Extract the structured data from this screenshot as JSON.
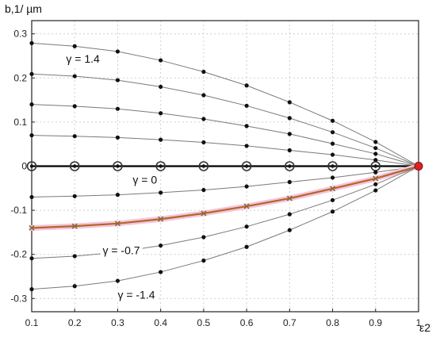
{
  "chart_data": {
    "type": "line",
    "title": "",
    "ylabel": "b,1/ µm",
    "xlabel": "ε2",
    "xlim": [
      0.1,
      1.0
    ],
    "ylim": [
      -0.33,
      0.33
    ],
    "grid": true,
    "x": [
      0.1,
      0.2,
      0.3,
      0.4,
      0.5,
      0.6,
      0.7,
      0.8,
      0.9,
      1.0
    ],
    "x_ticks": [
      "0.1",
      "0.2",
      "0.3",
      "0.4",
      "0.5",
      "0.6",
      "0.7",
      "0.8",
      "0.9",
      "1"
    ],
    "y_ticks": [
      "0.3",
      "0.2",
      "0.1",
      "0",
      "-0.1",
      "-0.2",
      "-0.3"
    ],
    "y_tick_values": [
      0.3,
      0.2,
      0.1,
      0,
      -0.1,
      -0.2,
      -0.3
    ],
    "series": [
      {
        "values": [
          0.279,
          0.272,
          0.26,
          0.24,
          0.214,
          0.183,
          0.145,
          0.103,
          0.055,
          0.0
        ],
        "style": "thin"
      },
      {
        "values": [
          0.209,
          0.204,
          0.195,
          0.18,
          0.161,
          0.137,
          0.109,
          0.077,
          0.041,
          0.0
        ],
        "style": "thin"
      },
      {
        "values": [
          0.14,
          0.136,
          0.13,
          0.12,
          0.107,
          0.091,
          0.073,
          0.051,
          0.028,
          0.0
        ],
        "style": "thin"
      },
      {
        "values": [
          0.07,
          0.068,
          0.065,
          0.06,
          0.054,
          0.046,
          0.036,
          0.026,
          0.014,
          0.0
        ],
        "style": "thin"
      },
      {
        "values": [
          0.0,
          0.0,
          0.0,
          0.0,
          0.0,
          0.0,
          0.0,
          0.0,
          0.0,
          0.0
        ],
        "style": "bold"
      },
      {
        "values": [
          -0.07,
          -0.068,
          -0.065,
          -0.06,
          -0.054,
          -0.046,
          -0.036,
          -0.026,
          -0.014,
          0.0
        ],
        "style": "thin"
      },
      {
        "values": [
          -0.14,
          -0.136,
          -0.13,
          -0.12,
          -0.107,
          -0.091,
          -0.073,
          -0.051,
          -0.028,
          0.0
        ],
        "style": "highlight"
      },
      {
        "values": [
          -0.209,
          -0.204,
          -0.195,
          -0.18,
          -0.161,
          -0.137,
          -0.109,
          -0.077,
          -0.041,
          0.0
        ],
        "style": "thin"
      },
      {
        "values": [
          -0.279,
          -0.272,
          -0.26,
          -0.24,
          -0.214,
          -0.183,
          -0.145,
          -0.103,
          -0.055,
          0.0
        ],
        "style": "thin"
      }
    ],
    "annotations": [
      {
        "text": "γ = 1.4",
        "x": 0.18,
        "y": 0.235
      },
      {
        "text": "γ = 0",
        "x": 0.335,
        "y": -0.04
      },
      {
        "text": "γ = -0.7",
        "x": 0.265,
        "y": -0.2
      },
      {
        "text": "γ = -1.4",
        "x": 0.3,
        "y": -0.3
      }
    ],
    "colors": {
      "thin_line": "#7a7a7a",
      "points": "#111111",
      "bold_line": "#000000",
      "highlight_line": "#b5652a",
      "highlight_glow": "#f3c6dc",
      "highlight_marker": "#8a6a3a",
      "end_point": "#e02020"
    }
  }
}
